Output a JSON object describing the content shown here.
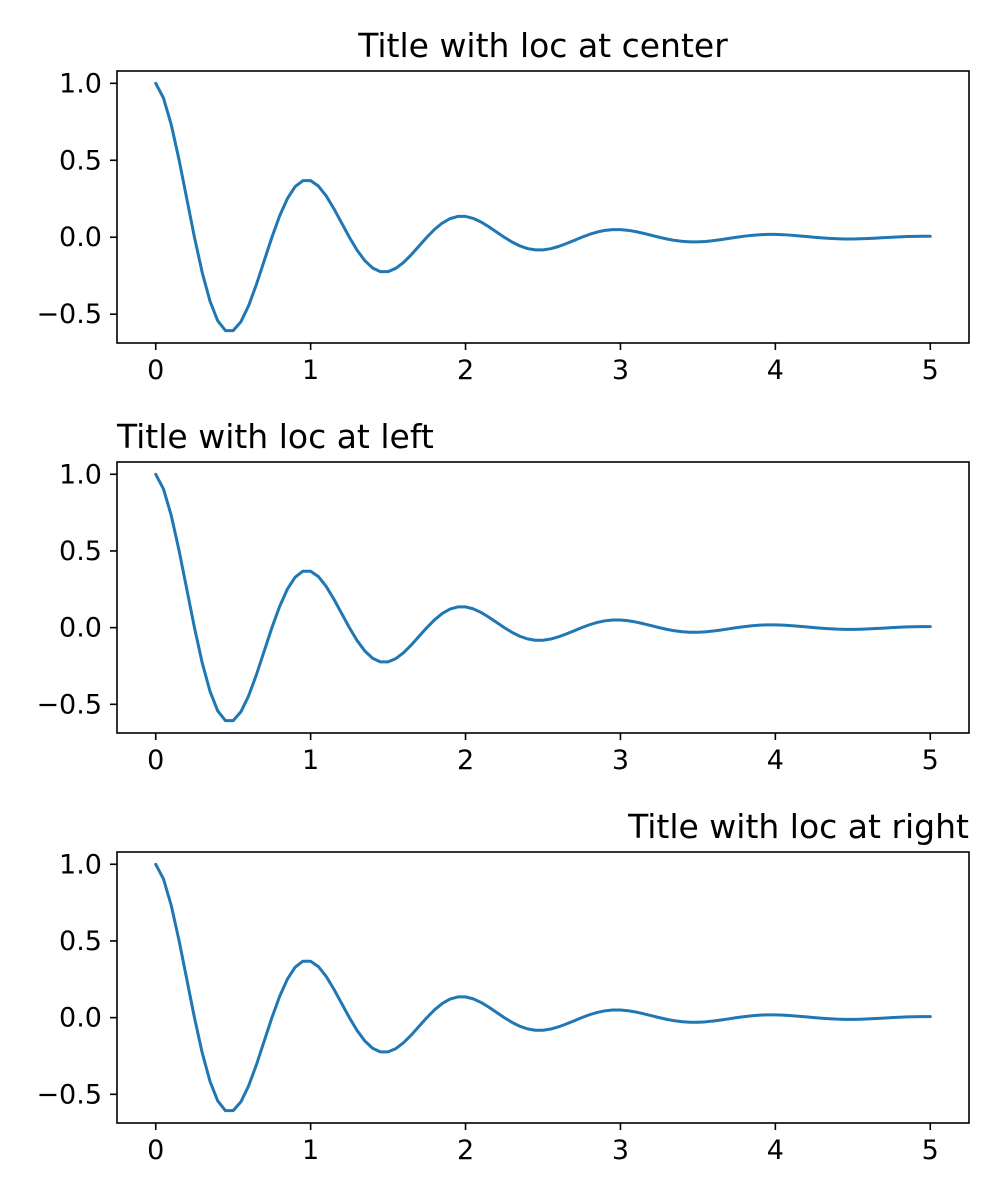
{
  "figure": {
    "background": "#ffffff",
    "line_color": "#1f77b4",
    "axis_color": "#000000",
    "text_color": "#000000"
  },
  "chart_data": [
    {
      "type": "line",
      "title": "Title with loc at center",
      "title_loc": "center",
      "xlabel": "",
      "ylabel": "",
      "xlim": [
        -0.25,
        5.25
      ],
      "ylim": [
        -0.687,
        1.08
      ],
      "xticks": [
        0,
        1,
        2,
        3,
        4,
        5
      ],
      "xtick_labels": [
        "0",
        "1",
        "2",
        "3",
        "4",
        "5"
      ],
      "yticks": [
        -0.5,
        0.0,
        0.5,
        1.0
      ],
      "ytick_labels": [
        "−0.5",
        "0.0",
        "0.5",
        "1.0"
      ],
      "grid": false,
      "legend": null,
      "series": [
        {
          "name": "line-1",
          "formula": "exp(-t)*cos(2*pi*t)",
          "color": "#1f77b4",
          "x_start": 0,
          "x_step": 0.05,
          "n_points": 101,
          "y": [
            1.0,
            0.9046,
            0.732,
            0.5059,
            0.253,
            0.0,
            -0.2289,
            -0.4142,
            -0.5423,
            -0.6064,
            -0.6065,
            -0.5487,
            -0.444,
            -0.3068,
            -0.1534,
            0.0,
            0.1388,
            0.2512,
            0.3289,
            0.3678,
            0.3679,
            0.3328,
            0.2693,
            0.1861,
            0.0931,
            0.0,
            -0.0842,
            -0.1524,
            -0.1995,
            -0.2231,
            -0.2231,
            -0.2018,
            -0.1633,
            -0.1129,
            -0.0565,
            0.0,
            0.0511,
            0.0924,
            0.121,
            0.1353,
            0.1353,
            0.1224,
            0.0991,
            0.0685,
            0.0342,
            0.0,
            -0.031,
            -0.0561,
            -0.0734,
            -0.0821,
            -0.0821,
            -0.0743,
            -0.0601,
            -0.0415,
            -0.0208,
            0.0,
            0.0188,
            0.034,
            0.0445,
            0.0497,
            0.0498,
            0.045,
            0.0364,
            0.0252,
            0.0126,
            0.0,
            -0.0114,
            -0.0206,
            -0.027,
            -0.0302,
            -0.0302,
            -0.0273,
            -0.0221,
            -0.0153,
            -0.0076,
            0.0,
            0.0069,
            0.0125,
            0.0164,
            0.0183,
            0.0183,
            0.0166,
            0.0134,
            0.0093,
            0.0046,
            0.0,
            -0.0042,
            -0.0076,
            -0.0099,
            -0.0111,
            -0.0111,
            -0.0101,
            -0.0081,
            -0.0056,
            -0.0028,
            0.0,
            0.0025,
            0.0046,
            0.006,
            0.0067,
            0.0067
          ]
        }
      ]
    },
    {
      "type": "line",
      "title": "Title with loc at left",
      "title_loc": "left",
      "xlabel": "",
      "ylabel": "",
      "xlim": [
        -0.25,
        5.25
      ],
      "ylim": [
        -0.687,
        1.08
      ],
      "xticks": [
        0,
        1,
        2,
        3,
        4,
        5
      ],
      "xtick_labels": [
        "0",
        "1",
        "2",
        "3",
        "4",
        "5"
      ],
      "yticks": [
        -0.5,
        0.0,
        0.5,
        1.0
      ],
      "ytick_labels": [
        "−0.5",
        "0.0",
        "0.5",
        "1.0"
      ],
      "grid": false,
      "legend": null,
      "series": [
        {
          "name": "line-1",
          "formula": "exp(-t)*cos(2*pi*t)",
          "color": "#1f77b4",
          "x_start": 0,
          "x_step": 0.05,
          "n_points": 101,
          "y": [
            1.0,
            0.9046,
            0.732,
            0.5059,
            0.253,
            0.0,
            -0.2289,
            -0.4142,
            -0.5423,
            -0.6064,
            -0.6065,
            -0.5487,
            -0.444,
            -0.3068,
            -0.1534,
            0.0,
            0.1388,
            0.2512,
            0.3289,
            0.3678,
            0.3679,
            0.3328,
            0.2693,
            0.1861,
            0.0931,
            0.0,
            -0.0842,
            -0.1524,
            -0.1995,
            -0.2231,
            -0.2231,
            -0.2018,
            -0.1633,
            -0.1129,
            -0.0565,
            0.0,
            0.0511,
            0.0924,
            0.121,
            0.1353,
            0.1353,
            0.1224,
            0.0991,
            0.0685,
            0.0342,
            0.0,
            -0.031,
            -0.0561,
            -0.0734,
            -0.0821,
            -0.0821,
            -0.0743,
            -0.0601,
            -0.0415,
            -0.0208,
            0.0,
            0.0188,
            0.034,
            0.0445,
            0.0497,
            0.0498,
            0.045,
            0.0364,
            0.0252,
            0.0126,
            0.0,
            -0.0114,
            -0.0206,
            -0.027,
            -0.0302,
            -0.0302,
            -0.0273,
            -0.0221,
            -0.0153,
            -0.0076,
            0.0,
            0.0069,
            0.0125,
            0.0164,
            0.0183,
            0.0183,
            0.0166,
            0.0134,
            0.0093,
            0.0046,
            0.0,
            -0.0042,
            -0.0076,
            -0.0099,
            -0.0111,
            -0.0111,
            -0.0101,
            -0.0081,
            -0.0056,
            -0.0028,
            0.0,
            0.0025,
            0.0046,
            0.006,
            0.0067,
            0.0067
          ]
        }
      ]
    },
    {
      "type": "line",
      "title": "Title with loc at right",
      "title_loc": "right",
      "xlabel": "",
      "ylabel": "",
      "xlim": [
        -0.25,
        5.25
      ],
      "ylim": [
        -0.687,
        1.08
      ],
      "xticks": [
        0,
        1,
        2,
        3,
        4,
        5
      ],
      "xtick_labels": [
        "0",
        "1",
        "2",
        "3",
        "4",
        "5"
      ],
      "yticks": [
        -0.5,
        0.0,
        0.5,
        1.0
      ],
      "ytick_labels": [
        "−0.5",
        "0.0",
        "0.5",
        "1.0"
      ],
      "grid": false,
      "legend": null,
      "series": [
        {
          "name": "line-1",
          "formula": "exp(-t)*cos(2*pi*t)",
          "color": "#1f77b4",
          "x_start": 0,
          "x_step": 0.05,
          "n_points": 101,
          "y": [
            1.0,
            0.9046,
            0.732,
            0.5059,
            0.253,
            0.0,
            -0.2289,
            -0.4142,
            -0.5423,
            -0.6064,
            -0.6065,
            -0.5487,
            -0.444,
            -0.3068,
            -0.1534,
            0.0,
            0.1388,
            0.2512,
            0.3289,
            0.3678,
            0.3679,
            0.3328,
            0.2693,
            0.1861,
            0.0931,
            0.0,
            -0.0842,
            -0.1524,
            -0.1995,
            -0.2231,
            -0.2231,
            -0.2018,
            -0.1633,
            -0.1129,
            -0.0565,
            0.0,
            0.0511,
            0.0924,
            0.121,
            0.1353,
            0.1353,
            0.1224,
            0.0991,
            0.0685,
            0.0342,
            0.0,
            -0.031,
            -0.0561,
            -0.0734,
            -0.0821,
            -0.0821,
            -0.0743,
            -0.0601,
            -0.0415,
            -0.0208,
            0.0,
            0.0188,
            0.034,
            0.0445,
            0.0497,
            0.0498,
            0.045,
            0.0364,
            0.0252,
            0.0126,
            0.0,
            -0.0114,
            -0.0206,
            -0.027,
            -0.0302,
            -0.0302,
            -0.0273,
            -0.0221,
            -0.0153,
            -0.0076,
            0.0,
            0.0069,
            0.0125,
            0.0164,
            0.0183,
            0.0183,
            0.0166,
            0.0134,
            0.0093,
            0.0046,
            0.0,
            -0.0042,
            -0.0076,
            -0.0099,
            -0.0111,
            -0.0111,
            -0.0101,
            -0.0081,
            -0.0056,
            -0.0028,
            0.0,
            0.0025,
            0.0046,
            0.006,
            0.0067,
            0.0067
          ]
        }
      ]
    }
  ]
}
